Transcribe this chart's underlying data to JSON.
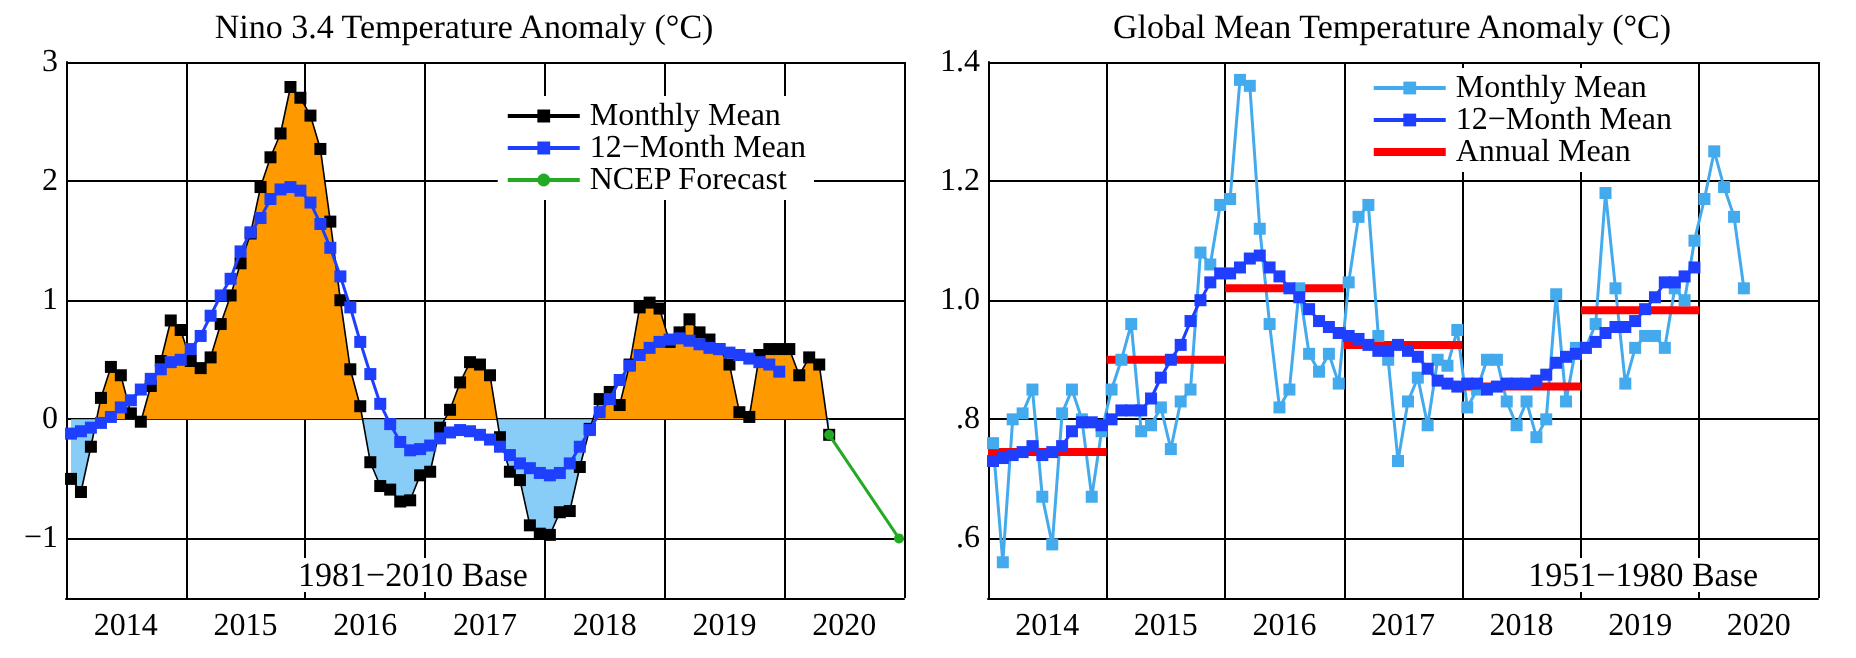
{
  "chart_data": [
    {
      "type": "line",
      "title": "Nino 3.4 Temperature Anomaly (°C)",
      "xlim": [
        2014,
        2021
      ],
      "ylim": [
        -1.5,
        3
      ],
      "xticks": [
        {
          "value": 2014,
          "label": null
        },
        {
          "value": 2014.5,
          "label": "2014"
        },
        {
          "value": 2015,
          "label": null
        },
        {
          "value": 2015.5,
          "label": "2015"
        },
        {
          "value": 2016,
          "label": null
        },
        {
          "value": 2016.5,
          "label": "2016"
        },
        {
          "value": 2017,
          "label": null
        },
        {
          "value": 2017.5,
          "label": "2017"
        },
        {
          "value": 2018,
          "label": null
        },
        {
          "value": 2018.5,
          "label": "2018"
        },
        {
          "value": 2019,
          "label": null
        },
        {
          "value": 2019.5,
          "label": "2019"
        },
        {
          "value": 2020,
          "label": null
        },
        {
          "value": 2020.5,
          "label": "2020"
        },
        {
          "value": 2021,
          "label": null
        }
      ],
      "yticks": [
        {
          "value": -1,
          "label": "−1"
        },
        0,
        1,
        2,
        3
      ],
      "grid": true,
      "legend": "top right",
      "marker": "square",
      "annotations": [
        "1981−2010 Base"
      ],
      "x": [
        2014.042,
        2014.125,
        2014.208,
        2014.292,
        2014.375,
        2014.458,
        2014.542,
        2014.625,
        2014.708,
        2014.792,
        2014.875,
        2014.958,
        2015.042,
        2015.125,
        2015.208,
        2015.292,
        2015.375,
        2015.458,
        2015.542,
        2015.625,
        2015.708,
        2015.792,
        2015.875,
        2015.958,
        2016.042,
        2016.125,
        2016.208,
        2016.292,
        2016.375,
        2016.458,
        2016.542,
        2016.625,
        2016.708,
        2016.792,
        2016.875,
        2016.958,
        2017.042,
        2017.125,
        2017.208,
        2017.292,
        2017.375,
        2017.458,
        2017.542,
        2017.625,
        2017.708,
        2017.792,
        2017.875,
        2017.958,
        2018.042,
        2018.125,
        2018.208,
        2018.292,
        2018.375,
        2018.458,
        2018.542,
        2018.625,
        2018.708,
        2018.792,
        2018.875,
        2018.958,
        2019.042,
        2019.125,
        2019.208,
        2019.292,
        2019.375,
        2019.458,
        2019.542,
        2019.625,
        2019.708,
        2019.792,
        2019.875,
        2019.958,
        2020.042,
        2020.125,
        2020.208,
        2020.292,
        2020.375
      ],
      "series": [
        {
          "name": "Monthly Mean",
          "type": "area",
          "color": "#000000",
          "colors": [
            "#87cdf8",
            "#87cdf8",
            "#87cdf8",
            "#ff9900",
            "#ff9900",
            "#ff9900",
            "#ff9900",
            "#87cdf8",
            "#ff9900",
            "#ff9900",
            "#ff9900",
            "#ff9900",
            "#ff9900",
            "#ff9900",
            "#ff9900",
            "#ff9900",
            "#ff9900",
            "#ff9900",
            "#ff9900",
            "#ff9900",
            "#ff9900",
            "#ff9900",
            "#ff9900",
            "#ff9900",
            "#ff9900",
            "#ff9900",
            "#ff9900",
            "#ff9900",
            "#ff9900",
            "#ff9900",
            "#87cdf8",
            "#87cdf8",
            "#87cdf8",
            "#87cdf8",
            "#87cdf8",
            "#87cdf8",
            "#87cdf8",
            "#87cdf8",
            "#ff9900",
            "#ff9900",
            "#ff9900",
            "#ff9900",
            "#ff9900",
            "#87cdf8",
            "#87cdf8",
            "#87cdf8",
            "#87cdf8",
            "#87cdf8",
            "#87cdf8",
            "#87cdf8",
            "#87cdf8",
            "#87cdf8",
            "#87cdf8",
            "#ff9900",
            "#ff9900",
            "#ff9900",
            "#ff9900",
            "#ff9900",
            "#ff9900",
            "#ff9900",
            "#ff9900",
            "#ff9900",
            "#ff9900",
            "#ff9900",
            "#ff9900",
            "#ff9900",
            "#ff9900",
            "#ff9900",
            "#ff9900",
            "#ff9900",
            "#ff9900",
            "#ff9900",
            "#ff9900",
            "#ff9900",
            "#ff9900",
            "#ff9900",
            "#87cdf8"
          ],
          "values": [
            -0.5,
            -0.61,
            -0.23,
            0.18,
            0.44,
            0.37,
            0.05,
            -0.02,
            0.28,
            0.49,
            0.83,
            0.75,
            0.49,
            0.43,
            0.52,
            0.8,
            1.04,
            1.31,
            1.56,
            1.95,
            2.2,
            2.4,
            2.79,
            2.7,
            2.55,
            2.27,
            1.66,
            1.0,
            0.42,
            0.11,
            -0.36,
            -0.56,
            -0.59,
            -0.69,
            -0.68,
            -0.47,
            -0.44,
            -0.07,
            0.08,
            0.31,
            0.48,
            0.46,
            0.37,
            -0.15,
            -0.44,
            -0.51,
            -0.89,
            -0.96,
            -0.97,
            -0.78,
            -0.77,
            -0.4,
            -0.08,
            0.17,
            0.23,
            0.12,
            0.46,
            0.94,
            0.98,
            0.93,
            0.65,
            0.73,
            0.84,
            0.73,
            0.67,
            0.59,
            0.46,
            0.06,
            0.02,
            0.54,
            0.59,
            0.59,
            0.59,
            0.37,
            0.52,
            0.46,
            -0.13
          ]
        },
        {
          "name": "12−Month Mean",
          "color": "#1f3fff",
          "values": [
            -0.12,
            -0.1,
            -0.07,
            -0.03,
            0.02,
            0.1,
            0.16,
            0.25,
            0.34,
            0.42,
            0.48,
            0.5,
            0.59,
            0.7,
            0.87,
            1.04,
            1.18,
            1.41,
            1.57,
            1.69,
            1.85,
            1.93,
            1.95,
            1.92,
            1.82,
            1.64,
            1.44,
            1.2,
            0.94,
            0.65,
            0.38,
            0.13,
            -0.04,
            -0.19,
            -0.26,
            -0.25,
            -0.22,
            -0.16,
            -0.11,
            -0.09,
            -0.1,
            -0.13,
            -0.17,
            -0.23,
            -0.3,
            -0.37,
            -0.41,
            -0.45,
            -0.47,
            -0.45,
            -0.37,
            -0.23,
            -0.09,
            0.06,
            0.17,
            0.33,
            0.45,
            0.54,
            0.6,
            0.65,
            0.67,
            0.68,
            0.66,
            0.63,
            0.6,
            0.59,
            0.56,
            0.54,
            0.51,
            0.48,
            0.46,
            0.4,
            null,
            null,
            null,
            null,
            null
          ]
        },
        {
          "name": "NCEP Forecast",
          "color": "#22aa22",
          "marker": "circle",
          "x": [
            2020.375,
            2020.958
          ],
          "values": [
            -0.13,
            -1.0
          ]
        }
      ]
    },
    {
      "type": "line",
      "title": "Global Mean Temperature Anomaly (°C)",
      "xlim": [
        2014,
        2021
      ],
      "ylim": [
        0.5,
        1.4
      ],
      "xticks": [
        {
          "value": 2014,
          "label": null
        },
        {
          "value": 2014.5,
          "label": "2014"
        },
        {
          "value": 2015,
          "label": null
        },
        {
          "value": 2015.5,
          "label": "2015"
        },
        {
          "value": 2016,
          "label": null
        },
        {
          "value": 2016.5,
          "label": "2016"
        },
        {
          "value": 2017,
          "label": null
        },
        {
          "value": 2017.5,
          "label": "2017"
        },
        {
          "value": 2018,
          "label": null
        },
        {
          "value": 2018.5,
          "label": "2018"
        },
        {
          "value": 2019,
          "label": null
        },
        {
          "value": 2019.5,
          "label": "2019"
        },
        {
          "value": 2020,
          "label": null
        },
        {
          "value": 2020.5,
          "label": "2020"
        },
        {
          "value": 2021,
          "label": null
        }
      ],
      "yticks": [
        {
          "value": 0.6,
          "label": ".6"
        },
        {
          "value": 0.8,
          "label": ".8"
        },
        {
          "value": 1.0,
          "label": "1.0"
        },
        1.2,
        1.4
      ],
      "grid": true,
      "legend": "top right",
      "marker": "square",
      "annotations": [
        "1951−1980 Base"
      ],
      "x": [
        2014.042,
        2014.125,
        2014.208,
        2014.292,
        2014.375,
        2014.458,
        2014.542,
        2014.625,
        2014.708,
        2014.792,
        2014.875,
        2014.958,
        2015.042,
        2015.125,
        2015.208,
        2015.292,
        2015.375,
        2015.458,
        2015.542,
        2015.625,
        2015.708,
        2015.792,
        2015.875,
        2015.958,
        2016.042,
        2016.125,
        2016.208,
        2016.292,
        2016.375,
        2016.458,
        2016.542,
        2016.625,
        2016.708,
        2016.792,
        2016.875,
        2016.958,
        2017.042,
        2017.125,
        2017.208,
        2017.292,
        2017.375,
        2017.458,
        2017.542,
        2017.625,
        2017.708,
        2017.792,
        2017.875,
        2017.958,
        2018.042,
        2018.125,
        2018.208,
        2018.292,
        2018.375,
        2018.458,
        2018.542,
        2018.625,
        2018.708,
        2018.792,
        2018.875,
        2018.958,
        2019.042,
        2019.125,
        2019.208,
        2019.292,
        2019.375,
        2019.458,
        2019.542,
        2019.625,
        2019.708,
        2019.792,
        2019.875,
        2019.958,
        2020.042,
        2020.125,
        2020.208,
        2020.292,
        2020.375
      ],
      "series": [
        {
          "name": "Monthly Mean",
          "color": "#44aaee",
          "values": [
            0.76,
            0.56,
            0.8,
            0.81,
            0.85,
            0.67,
            0.59,
            0.81,
            0.85,
            0.8,
            0.67,
            0.78,
            0.85,
            0.9,
            0.96,
            0.78,
            0.79,
            0.82,
            0.75,
            0.83,
            0.85,
            1.08,
            1.06,
            1.16,
            1.17,
            1.37,
            1.36,
            1.12,
            0.96,
            0.82,
            0.85,
            1.02,
            0.91,
            0.88,
            0.91,
            0.86,
            1.03,
            1.14,
            1.16,
            0.94,
            0.9,
            0.73,
            0.83,
            0.87,
            0.79,
            0.9,
            0.89,
            0.95,
            0.82,
            0.85,
            0.9,
            0.9,
            0.83,
            0.79,
            0.83,
            0.77,
            0.8,
            1.01,
            0.83,
            0.92,
            0.92,
            0.96,
            1.18,
            1.02,
            0.86,
            0.92,
            0.94,
            0.94,
            0.92,
            1.02,
            1.0,
            1.1,
            1.17,
            1.25,
            1.19,
            1.14,
            1.02
          ]
        },
        {
          "name": "12−Month Mean",
          "color": "#1f3fff",
          "values": [
            0.73,
            0.735,
            0.74,
            0.745,
            0.755,
            0.74,
            0.745,
            0.755,
            0.78,
            0.795,
            0.795,
            0.79,
            0.8,
            0.815,
            0.815,
            0.815,
            0.835,
            0.87,
            0.9,
            0.925,
            0.965,
            1.0,
            1.03,
            1.045,
            1.045,
            1.055,
            1.07,
            1.075,
            1.055,
            1.04,
            1.02,
            1.005,
            0.985,
            0.965,
            0.955,
            0.945,
            0.94,
            0.935,
            0.925,
            0.915,
            0.915,
            0.925,
            0.915,
            0.905,
            0.885,
            0.865,
            0.86,
            0.855,
            0.86,
            0.86,
            0.85,
            0.855,
            0.86,
            0.86,
            0.86,
            0.865,
            0.875,
            0.895,
            0.905,
            0.91,
            0.92,
            0.93,
            0.945,
            0.955,
            0.955,
            0.965,
            0.985,
            1.005,
            1.03,
            1.03,
            1.04,
            1.055,
            null,
            null,
            null,
            null,
            null
          ]
        },
        {
          "name": "Annual Mean",
          "color": "#ff0000",
          "marker": "none",
          "x": [
            2014,
            2015,
            null,
            2015,
            2016,
            null,
            2016,
            2017,
            null,
            2017,
            2018,
            null,
            2018,
            2019,
            null,
            2019,
            2020
          ],
          "values": [
            0.745,
            0.745,
            null,
            0.9,
            0.9,
            null,
            1.02,
            1.02,
            null,
            0.925,
            0.925,
            null,
            0.855,
            0.855,
            null,
            0.983,
            0.983
          ]
        }
      ]
    }
  ]
}
